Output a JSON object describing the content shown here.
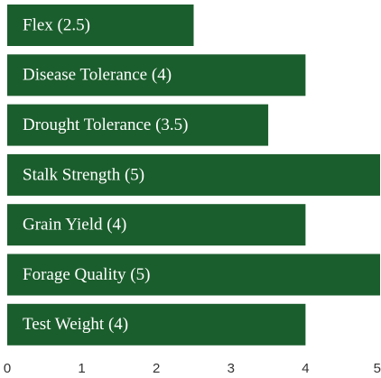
{
  "chart_data": {
    "type": "barh",
    "categories": [
      "Flex (2.5)",
      "Disease Tolerance (4)",
      "Drought Tolerance (3.5)",
      "Stalk Strength (5)",
      "Grain Yield (4)",
      "Forage Quality (5)",
      "Test Weight (4)"
    ],
    "values": [
      2.5,
      4,
      3.5,
      5,
      4,
      5,
      4
    ],
    "color": "#1b5e2d",
    "xlim": [
      0,
      5
    ],
    "xticks": [
      0,
      1,
      2,
      3,
      4,
      5
    ],
    "grid": false
  }
}
